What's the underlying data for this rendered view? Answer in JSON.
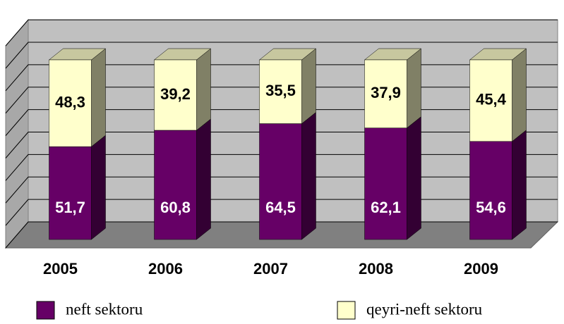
{
  "chart_data": {
    "type": "bar",
    "categories": [
      "2005",
      "2006",
      "2007",
      "2008",
      "2009"
    ],
    "stacked": true,
    "series": [
      {
        "name": "neft sektoru",
        "color": "#660066",
        "values": [
          51.7,
          60.8,
          64.5,
          62.1,
          54.6
        ],
        "value_labels": [
          "51,7",
          "60,8",
          "64,5",
          "62,1",
          "54,6"
        ]
      },
      {
        "name": "qeyri-neft sektoru",
        "color": "#ffffcc",
        "values": [
          48.3,
          39.2,
          35.5,
          37.9,
          45.4
        ],
        "value_labels": [
          "48,3",
          "39,2",
          "35,5",
          "37,9",
          "45,4"
        ]
      }
    ],
    "ylim": [
      0,
      112.5
    ],
    "yticks": [
      0,
      12.5,
      25,
      37.5,
      50,
      62.5,
      75,
      87.5,
      100,
      112.5
    ],
    "grid": true
  }
}
